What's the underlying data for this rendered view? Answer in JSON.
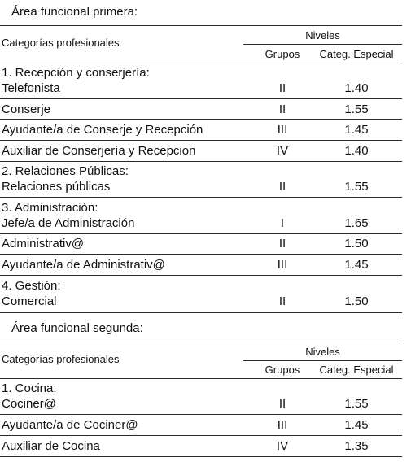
{
  "area1": {
    "title": "Área funcional primera:",
    "header": {
      "categories": "Categorías profesionales",
      "levels": "Niveles",
      "groups": "Grupos",
      "special": "Categ. Especial"
    },
    "rows": {
      "section1_title": "1. Recepción y conserjería:",
      "telefonista": {
        "name": "Telefonista",
        "group": "II",
        "special": "1.40"
      },
      "conserje": {
        "name": "Conserje",
        "group": "II",
        "special": "1.55"
      },
      "ayudante_conserje": {
        "name": "Ayudante/a de Conserje y Recepción",
        "group": "III",
        "special": "1.45"
      },
      "auxiliar_conserjeria": {
        "name": "Auxiliar de Conserjería y Recepcion",
        "group": "IV",
        "special": "1.40"
      },
      "section2_title": "2. Relaciones Públicas:",
      "relaciones_publicas": {
        "name": "Relaciones públicas",
        "group": "II",
        "special": "1.55"
      },
      "section3_title": "3. Administración:",
      "jefe_admin": {
        "name": "Jefe/a de Administración",
        "group": "I",
        "special": "1.65"
      },
      "administrativo": {
        "name": "Administrativ@",
        "group": "II",
        "special": "1.50"
      },
      "ayudante_admin": {
        "name": "Ayudante/a de Administrativ@",
        "group": "III",
        "special": "1.45"
      },
      "section4_title": "4. Gestión:",
      "comercial": {
        "name": "Comercial",
        "group": "II",
        "special": "1.50"
      }
    }
  },
  "area2": {
    "title": "Área funcional segunda:",
    "header": {
      "categories": "Categorías profesionales",
      "levels": "Niveles",
      "groups": "Grupos",
      "special": "Categ. Especial"
    },
    "rows": {
      "section1_title": "1. Cocina:",
      "cocinero": {
        "name": "Cociner@",
        "group": "II",
        "special": "1.55"
      },
      "ayudante_cocinero": {
        "name": "Ayudante/a de Cociner@",
        "group": "III",
        "special": "1.45"
      },
      "auxiliar_cocina": {
        "name": "Auxiliar de Cocina",
        "group": "IV",
        "special": "1.35"
      }
    }
  }
}
